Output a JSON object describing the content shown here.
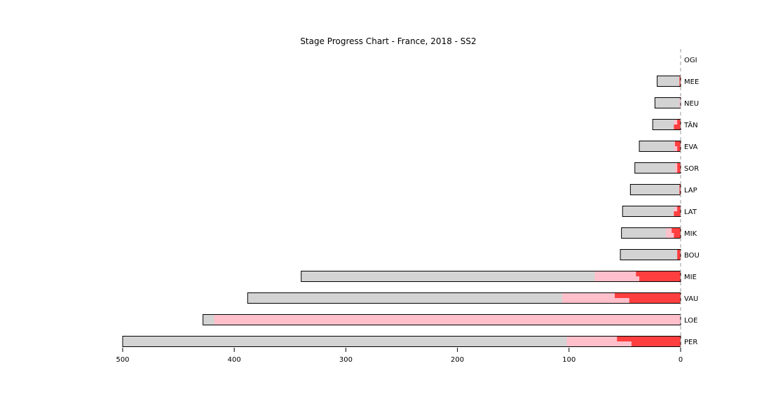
{
  "chart_data": {
    "type": "bar",
    "title": "Stage Progress Chart - France, 2018 - SS2",
    "xlim": [
      500,
      0
    ],
    "xticks": [
      500,
      400,
      300,
      200,
      100,
      0
    ],
    "colors": {
      "gap": "#d3d3d3",
      "gain_light": "#ffc0cb",
      "gain_strong": "#ff3f3f",
      "outline": "#000000",
      "zero_line": "#999999"
    },
    "series_keys": [
      "total_gap",
      "pink_upper",
      "pink_lower",
      "red_upper",
      "red_lower"
    ],
    "rows": [
      {
        "label": "OGI",
        "total_gap": 0,
        "pink_upper": 0,
        "pink_lower": 0,
        "red_upper": 0,
        "red_lower": 0
      },
      {
        "label": "MEE",
        "total_gap": 21,
        "pink_upper": 1,
        "pink_lower": 1,
        "red_upper": 1,
        "red_lower": 1
      },
      {
        "label": "NEU",
        "total_gap": 23,
        "pink_upper": 1,
        "pink_lower": 1,
        "red_upper": 0,
        "red_lower": 0
      },
      {
        "label": "TÄN",
        "total_gap": 25,
        "pink_upper": 6,
        "pink_lower": 6,
        "red_upper": 3,
        "red_lower": 6
      },
      {
        "label": "EVA",
        "total_gap": 37,
        "pink_upper": 6,
        "pink_lower": 6,
        "red_upper": 5,
        "red_lower": 3
      },
      {
        "label": "SOR",
        "total_gap": 41,
        "pink_upper": 5,
        "pink_lower": 5,
        "red_upper": 3,
        "red_lower": 3
      },
      {
        "label": "LAP",
        "total_gap": 45,
        "pink_upper": 1,
        "pink_lower": 1,
        "red_upper": 1,
        "red_lower": 1
      },
      {
        "label": "LAT",
        "total_gap": 52,
        "pink_upper": 6,
        "pink_lower": 6,
        "red_upper": 3,
        "red_lower": 6
      },
      {
        "label": "MIK",
        "total_gap": 53,
        "pink_upper": 13,
        "pink_lower": 13,
        "red_upper": 8,
        "red_lower": 6
      },
      {
        "label": "BOU",
        "total_gap": 54,
        "pink_upper": 3,
        "pink_lower": 3,
        "red_upper": 3,
        "red_lower": 3
      },
      {
        "label": "MIE",
        "total_gap": 340,
        "pink_upper": 77,
        "pink_lower": 77,
        "red_upper": 40,
        "red_lower": 37
      },
      {
        "label": "VAU",
        "total_gap": 388,
        "pink_upper": 106,
        "pink_lower": 106,
        "red_upper": 59,
        "red_lower": 46
      },
      {
        "label": "LOE",
        "total_gap": 428,
        "pink_upper": 418,
        "pink_lower": 418,
        "red_upper": 0,
        "red_lower": 0
      },
      {
        "label": "PER",
        "total_gap": 500,
        "pink_upper": 102,
        "pink_lower": 102,
        "red_upper": 57,
        "red_lower": 44
      }
    ]
  }
}
